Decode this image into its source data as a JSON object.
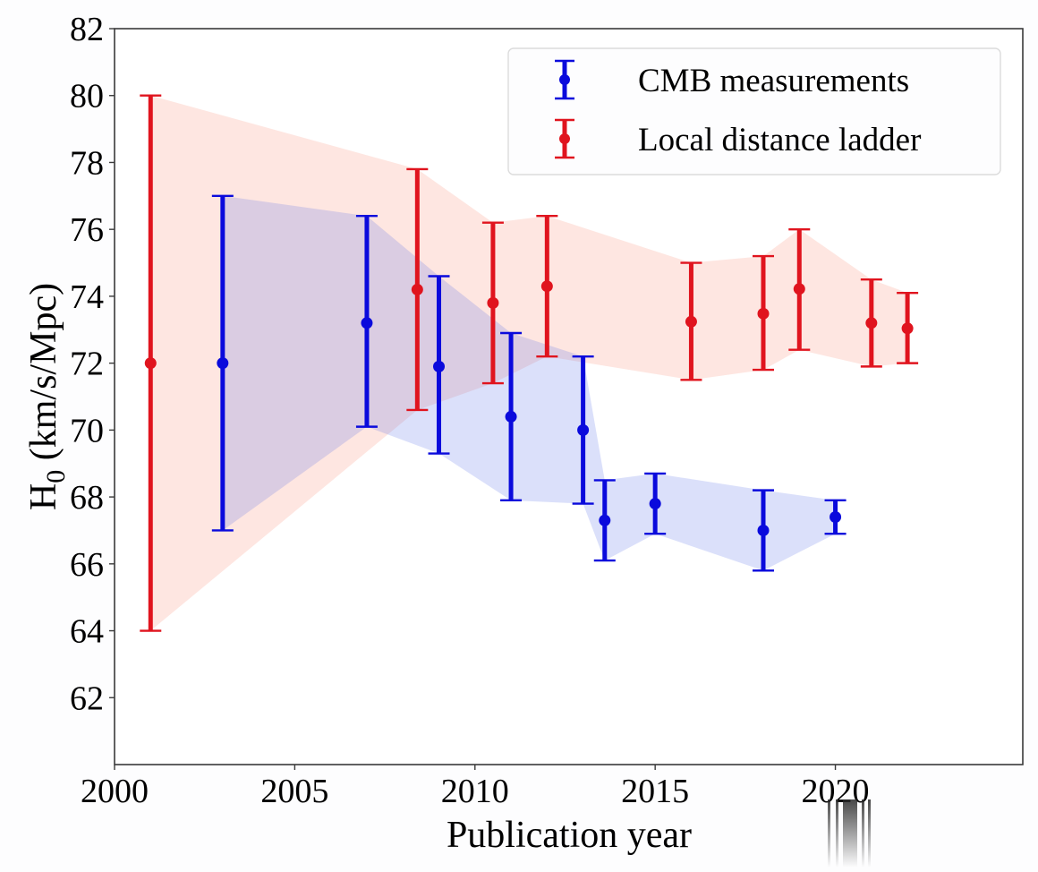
{
  "chart_data": {
    "type": "errorbar",
    "title": "",
    "xlabel": "Publication year",
    "ylabel_main": "H",
    "ylabel_sub": "0",
    "ylabel_rest": " (km/s/Mpc)",
    "xlim": [
      2000,
      2025.2
    ],
    "ylim": [
      60,
      82
    ],
    "xticks": [
      2000,
      2005,
      2010,
      2015,
      2020
    ],
    "yticks": [
      62,
      64,
      66,
      68,
      70,
      72,
      74,
      76,
      78,
      80,
      82
    ],
    "grid": false,
    "legend_position": "top-right",
    "series": [
      {
        "name": "CMB measurements",
        "color": "#0a0adc",
        "band_color": "#4a64e6",
        "points": [
          {
            "x": 2003.0,
            "y": 72.0,
            "lower": 67.0,
            "upper": 77.0
          },
          {
            "x": 2007.0,
            "y": 73.2,
            "lower": 70.1,
            "upper": 76.4
          },
          {
            "x": 2009.0,
            "y": 71.9,
            "lower": 69.3,
            "upper": 74.6
          },
          {
            "x": 2011.0,
            "y": 70.4,
            "lower": 67.9,
            "upper": 72.9
          },
          {
            "x": 2013.0,
            "y": 70.0,
            "lower": 67.8,
            "upper": 72.2
          },
          {
            "x": 2013.6,
            "y": 67.3,
            "lower": 66.1,
            "upper": 68.5
          },
          {
            "x": 2015.0,
            "y": 67.8,
            "lower": 66.9,
            "upper": 68.7
          },
          {
            "x": 2018.0,
            "y": 67.0,
            "lower": 65.8,
            "upper": 68.2
          },
          {
            "x": 2020.0,
            "y": 67.4,
            "lower": 66.9,
            "upper": 67.9
          }
        ]
      },
      {
        "name": "Local distance ladder",
        "color": "#e0141e",
        "band_color": "#fa8c78",
        "points": [
          {
            "x": 2001.0,
            "y": 72.0,
            "lower": 64.0,
            "upper": 80.0
          },
          {
            "x": 2008.4,
            "y": 74.2,
            "lower": 70.6,
            "upper": 77.8
          },
          {
            "x": 2010.5,
            "y": 73.8,
            "lower": 71.4,
            "upper": 76.2
          },
          {
            "x": 2012.0,
            "y": 74.3,
            "lower": 72.2,
            "upper": 76.4
          },
          {
            "x": 2016.0,
            "y": 73.24,
            "lower": 71.5,
            "upper": 75.0
          },
          {
            "x": 2018.0,
            "y": 73.48,
            "lower": 71.8,
            "upper": 75.2
          },
          {
            "x": 2019.0,
            "y": 74.22,
            "lower": 72.4,
            "upper": 76.0
          },
          {
            "x": 2021.0,
            "y": 73.2,
            "lower": 71.9,
            "upper": 74.5
          },
          {
            "x": 2022.0,
            "y": 73.04,
            "lower": 72.0,
            "upper": 74.1
          }
        ]
      }
    ]
  }
}
